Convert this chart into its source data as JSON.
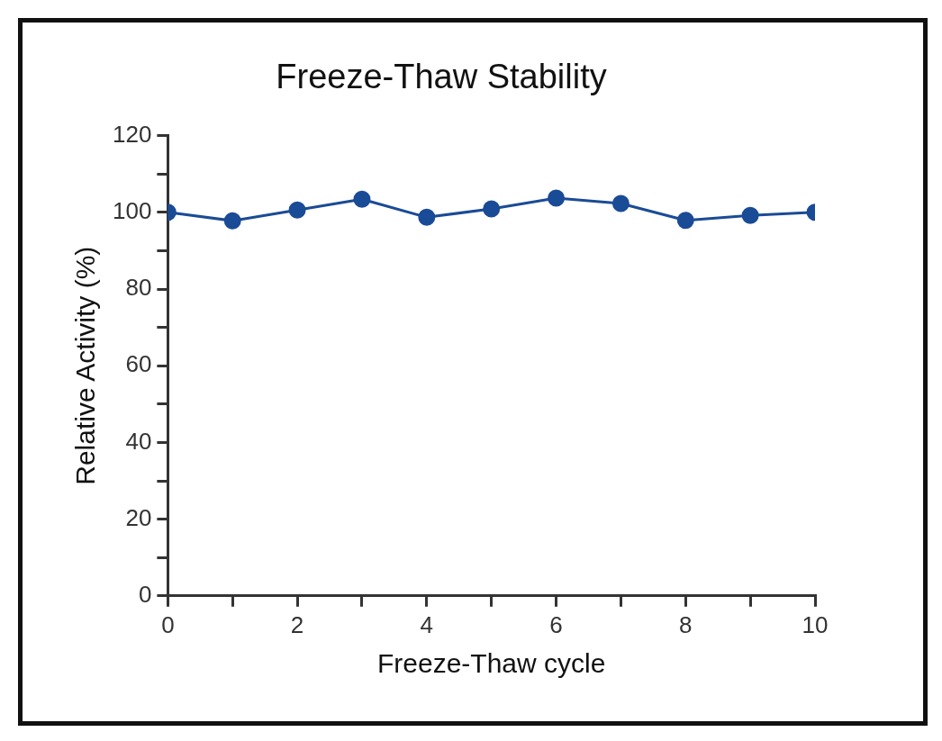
{
  "chart_data": {
    "type": "line",
    "title": "Freeze-Thaw Stability",
    "xlabel": "Freeze-Thaw cycle",
    "ylabel": "Relative Activity (%)",
    "x": [
      0,
      1,
      2,
      3,
      4,
      5,
      6,
      7,
      8,
      9,
      10
    ],
    "series": [
      {
        "color": "#1a4b96",
        "values": [
          100,
          97.8,
          100.6,
          103.4,
          98.7,
          100.9,
          103.7,
          102.3,
          97.9,
          99.2,
          100
        ]
      }
    ],
    "xlim": [
      0,
      10
    ],
    "xticks": [
      0,
      {
        "value": 1,
        "label": null
      },
      2,
      {
        "value": 3,
        "label": null
      },
      4,
      {
        "value": 5,
        "label": null
      },
      6,
      {
        "value": 7,
        "label": null
      },
      8,
      {
        "value": 9,
        "label": null
      },
      10
    ],
    "ylim": [
      0,
      120
    ],
    "yticks": [
      0,
      {
        "value": 10,
        "label": null
      },
      20,
      {
        "value": 30,
        "label": null
      },
      40,
      {
        "value": 50,
        "label": null
      },
      60,
      {
        "value": 70,
        "label": null
      },
      80,
      {
        "value": 90,
        "label": null
      },
      100,
      {
        "value": 110,
        "label": null
      },
      120
    ],
    "grid": false,
    "legend": false,
    "marker": "circle",
    "line_style": "solid"
  }
}
